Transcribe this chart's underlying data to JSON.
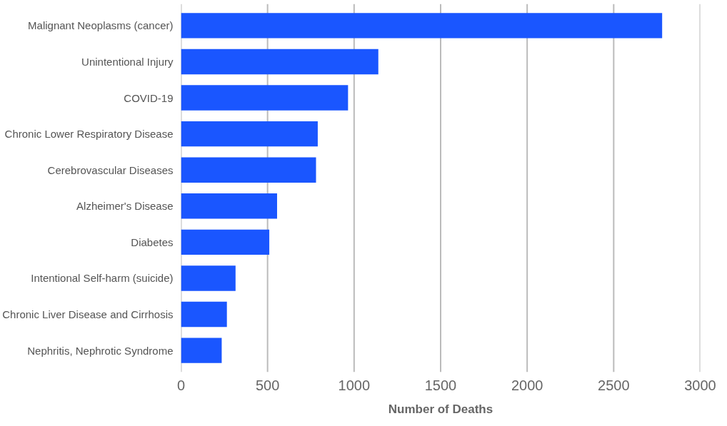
{
  "chart_data": {
    "type": "bar",
    "orientation": "horizontal",
    "xlabel": "Number of Deaths",
    "categories": [
      "Malignant Neoplasms (cancer)",
      "Unintentional Injury",
      "COVID-19",
      "Chronic Lower Respiratory Disease",
      "Cerebrovascular Diseases",
      "Alzheimer's Disease",
      "Diabetes",
      "Intentional Self-harm (suicide)",
      "Chronic Liver Disease and Cirrhosis",
      "Nephritis, Nephrotic Syndrome"
    ],
    "values": [
      2780,
      1140,
      965,
      790,
      780,
      555,
      510,
      315,
      265,
      235
    ],
    "color": "#1a56ff",
    "xlim": [
      0,
      3000
    ],
    "xticks": [
      0,
      500,
      1000,
      1500,
      2000,
      2500,
      3000
    ],
    "grid": "x"
  }
}
